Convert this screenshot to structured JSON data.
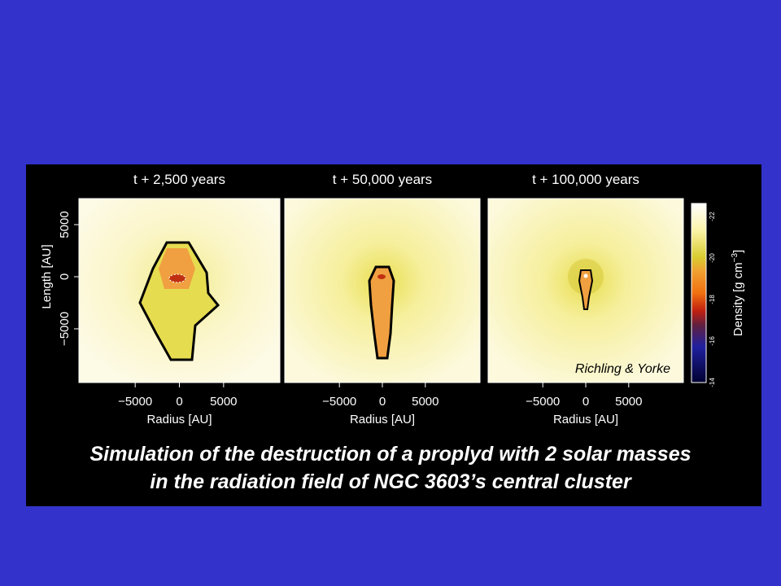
{
  "panels": [
    {
      "title": "t + 2,500 years",
      "x_label": "Radius [AU]",
      "x_ticks": [
        "−5000",
        "0",
        "5000"
      ],
      "y_label": "Length [AU]",
      "y_ticks": [
        "5000",
        "0",
        "−5000"
      ]
    },
    {
      "title": "t + 50,000 years",
      "x_label": "Radius [AU]",
      "x_ticks": [
        "−5000",
        "0",
        "5000"
      ]
    },
    {
      "title": "t + 100,000 years",
      "x_label": "Radius [AU]",
      "x_ticks": [
        "−5000",
        "0",
        "5000"
      ],
      "credit": "Richling & Yorke"
    }
  ],
  "colorbar": {
    "label": "Density [g cm",
    "label_exponent": "−3",
    "label_end": "]",
    "ticks": [
      "-22",
      "-20",
      "-18",
      "-16",
      "-14"
    ]
  },
  "caption": [
    "Simulation of the destruction of a proplyd with 2 solar masses",
    "in the radiation field of NGC 3603’s central cluster"
  ]
}
